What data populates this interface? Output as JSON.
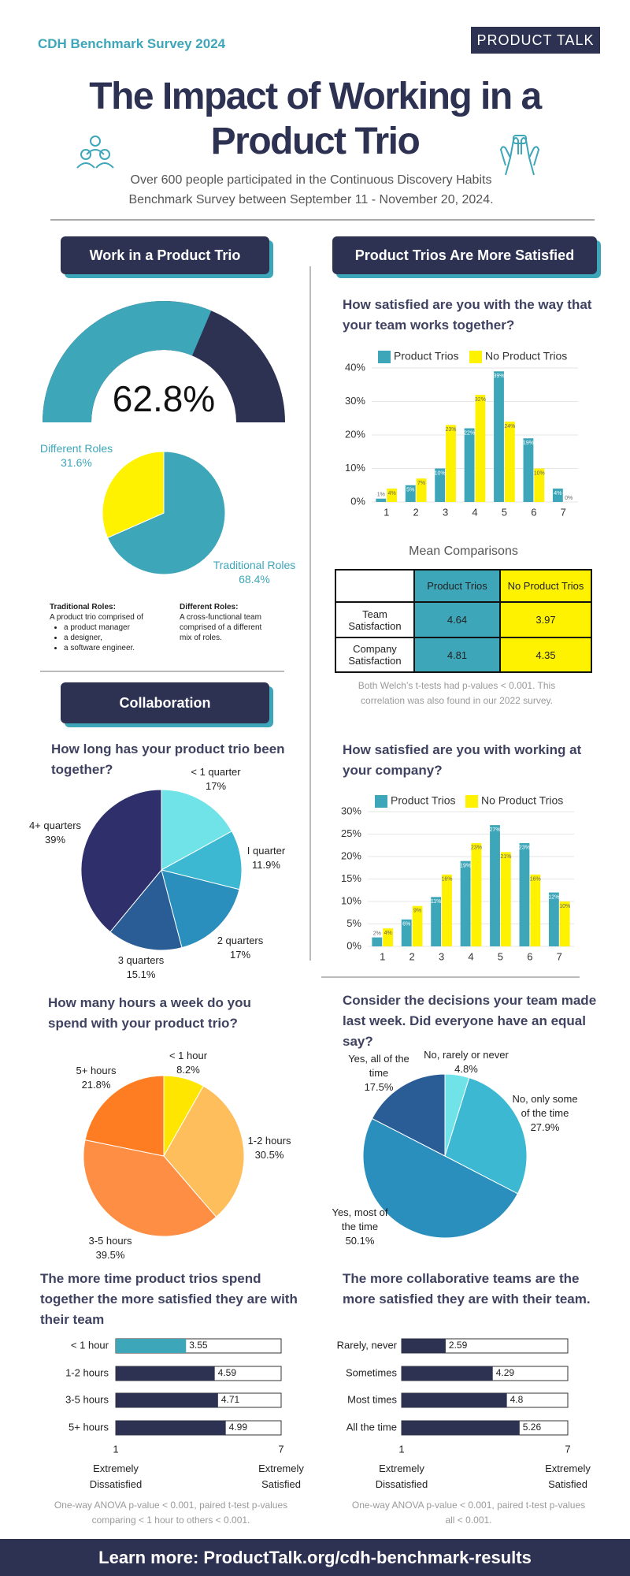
{
  "header": {
    "kicker": "CDH Benchmark Survey 2024",
    "brand": "PRODUCT TALK",
    "title": "The Impact of Working in a Product Trio",
    "subtitle": "Over 600 people participated in the Continuous Discovery Habits Benchmark Survey between September 11 - November 20, 2024."
  },
  "sections": {
    "trio": "Work in a Product Trio",
    "satisfied": "Product Trios Are More Satisfied",
    "collaboration": "Collaboration"
  },
  "roles_notes": {
    "traditional_title": "Traditional Roles:",
    "traditional_text": "A product trio comprised of",
    "traditional_items": [
      "a product manager",
      "a designer,",
      "a software engineer."
    ],
    "different_title": "Different Roles:",
    "different_text": "A cross-functional team comprised of a different mix of roles."
  },
  "mean_table": {
    "title": "Mean Comparisons",
    "columns": [
      "Product Trios",
      "No Product Trios"
    ],
    "rows": [
      {
        "label": "Team Satisfaction",
        "values": [
          4.64,
          3.97
        ]
      },
      {
        "label": "Company Satisfaction",
        "values": [
          4.81,
          4.35
        ]
      }
    ],
    "note": "Both Welch’s t-tests had p-values < 0.001. This correlation was also found in our 2022 survey."
  },
  "footer": "Learn more: ProductTalk.org/cdh-benchmark-results",
  "chart_data": [
    {
      "type": "gauge",
      "value": 62.8,
      "value_label": "62.8%",
      "ylim": [
        0,
        100
      ],
      "colors": [
        "#3ea6b9",
        "#2d3152"
      ]
    },
    {
      "type": "pie",
      "categories": [
        "Traditional Roles",
        "Different Roles"
      ],
      "values": [
        68.4,
        31.6
      ],
      "value_labels": [
        "68.4%",
        "31.6%"
      ],
      "colors": [
        "#3ea6b9",
        "#fff200"
      ]
    },
    {
      "type": "bar",
      "title": "How satisfied are you with the way that your team works together?",
      "categories": [
        "1",
        "2",
        "3",
        "4",
        "5",
        "6",
        "7"
      ],
      "series": [
        {
          "name": "Product Trios",
          "color": "#3ea6b9",
          "values": [
            1,
            5,
            10,
            22,
            39,
            19,
            4
          ],
          "value_labels": [
            "1%",
            "5%",
            "10%",
            "22%",
            "39%",
            "19%",
            "4%"
          ]
        },
        {
          "name": "No Product Trios",
          "color": "#fff200",
          "values": [
            4,
            7,
            23,
            32,
            24,
            10,
            0
          ],
          "value_labels": [
            "4%",
            "7%",
            "23%",
            "32%",
            "24%",
            "10%",
            "0%"
          ]
        }
      ],
      "ylim": [
        0,
        40
      ],
      "yticks": [
        {
          "value": 0,
          "label": "0%"
        },
        {
          "value": 10,
          "label": "10%"
        },
        {
          "value": 20,
          "label": "20%"
        },
        {
          "value": 30,
          "label": "30%"
        },
        {
          "value": 40,
          "label": "40%"
        }
      ],
      "grid": true
    },
    {
      "type": "bar",
      "title": "How satisfied are you with working at your company?",
      "categories": [
        "1",
        "2",
        "3",
        "4",
        "5",
        "6",
        "7"
      ],
      "series": [
        {
          "name": "Product Trios",
          "color": "#3ea6b9",
          "values": [
            2,
            6,
            11,
            19,
            27,
            23,
            12
          ],
          "value_labels": [
            "2%",
            "6%",
            "11%",
            "19%",
            "27%",
            "23%",
            "12%"
          ]
        },
        {
          "name": "No Product Trios",
          "color": "#fff200",
          "values": [
            4,
            9,
            16,
            23,
            21,
            16,
            10
          ],
          "value_labels": [
            "4%",
            "9%",
            "16%",
            "23%",
            "21%",
            "16%",
            "10%"
          ]
        }
      ],
      "ylim": [
        0,
        30
      ],
      "yticks": [
        {
          "value": 0,
          "label": "0%"
        },
        {
          "value": 5,
          "label": "5%"
        },
        {
          "value": 10,
          "label": "10%"
        },
        {
          "value": 15,
          "label": "15%"
        },
        {
          "value": 20,
          "label": "20%"
        },
        {
          "value": 25,
          "label": "25%"
        },
        {
          "value": 30,
          "label": "30%"
        }
      ],
      "grid": true
    },
    {
      "type": "pie",
      "title": "How long has your product trio been together?",
      "categories": [
        "< 1 quarter",
        "I quarter",
        "2 quarters",
        "3 quarters",
        "4+ quarters"
      ],
      "values": [
        17,
        11.9,
        17,
        15.1,
        39
      ],
      "value_labels": [
        "17%",
        "11.9%",
        "17%",
        "15.1%",
        "39%"
      ],
      "colors": [
        "#6fe3e8",
        "#3db8d3",
        "#2b8fbd",
        "#2a5d95",
        "#2e2f6b"
      ]
    },
    {
      "type": "pie",
      "title": "How many hours a week do you spend with your product trio?",
      "categories": [
        "< 1 hour",
        "1-2 hours",
        "3-5 hours",
        "5+ hours"
      ],
      "values": [
        8.2,
        30.5,
        39.5,
        21.8
      ],
      "value_labels": [
        "8.2%",
        "30.5%",
        "39.5%",
        "21.8%"
      ],
      "colors": [
        "#ffe600",
        "#ffbe5c",
        "#ff8e45",
        "#ff7d22"
      ]
    },
    {
      "type": "pie",
      "title": "Consider the decisions your team made last week. Did everyone have an equal say?",
      "categories": [
        "No, rarely or never",
        "No, only some of the time",
        "Yes, most of the time",
        "Yes, all of the time"
      ],
      "values": [
        4.8,
        27.9,
        50.1,
        17.5
      ],
      "value_labels": [
        "4.8%",
        "27.9%",
        "50.1%",
        "17.5%"
      ],
      "colors": [
        "#6fe3e8",
        "#3db8d3",
        "#2b8fbd",
        "#2a5d95"
      ]
    },
    {
      "type": "hbar",
      "title": "The more time product trios spend together the more satisfied they are with their team",
      "categories": [
        "< 1 hour",
        "1-2 hours",
        "3-5 hours",
        "5+ hours"
      ],
      "values": [
        3.55,
        4.59,
        4.71,
        4.99
      ],
      "colors": [
        "#3ea6b9",
        "#2d3152",
        "#2d3152",
        "#2d3152"
      ],
      "xlim": [
        1,
        7
      ],
      "xticks": [
        1,
        7
      ],
      "axis_end_labels": [
        "Extremely Dissatisfied",
        "Extremely Satisfied"
      ],
      "note": "One-way ANOVA p-value < 0.001, paired t-test p-values comparing < 1 hour to others < 0.001."
    },
    {
      "type": "hbar",
      "title": "The more collaborative teams are the more satisfied they are with their team.",
      "categories": [
        "Rarely, never",
        "Sometimes",
        "Most times",
        "All the time"
      ],
      "values": [
        2.59,
        4.29,
        4.8,
        5.26
      ],
      "colors": [
        "#2d3152",
        "#2d3152",
        "#2d3152",
        "#2d3152"
      ],
      "xlim": [
        1,
        7
      ],
      "xticks": [
        1,
        7
      ],
      "axis_end_labels": [
        "Extremely Dissatisfied",
        "Extremely Satisfied"
      ],
      "note": "One-way ANOVA p-value < 0.001, paired t-test p-values all < 0.001."
    }
  ]
}
